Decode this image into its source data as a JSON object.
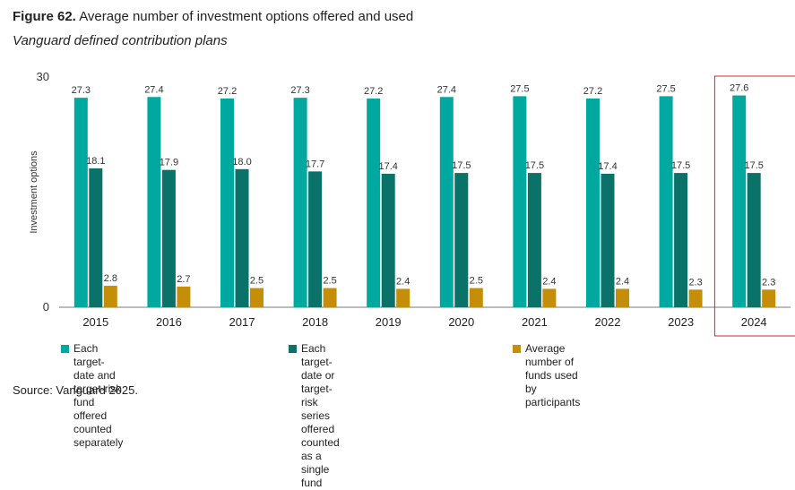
{
  "title": {
    "figure_label": "Figure 62.",
    "text": "Average number of investment options offered and used"
  },
  "subtitle": "Vanguard defined contribution plans",
  "source": "Source: Vanguard 2025.",
  "highlight_color": "#d9262c",
  "chart_data": {
    "type": "bar",
    "title": "Average number of investment options offered and used",
    "subtitle": "Vanguard defined contribution plans",
    "xlabel": "",
    "ylabel": "Investment options",
    "ylim": [
      0,
      30
    ],
    "yticks": [
      0,
      30
    ],
    "grid": false,
    "legend_position": "bottom",
    "categories": [
      "2015",
      "2016",
      "2017",
      "2018",
      "2019",
      "2020",
      "2021",
      "2022",
      "2023",
      "2024"
    ],
    "highlighted_category": "2024",
    "series": [
      {
        "name": "Each target-date and target-risk fund offered counted separately",
        "color": "#00a9a0",
        "values": [
          27.3,
          27.4,
          27.2,
          27.3,
          27.2,
          27.4,
          27.5,
          27.2,
          27.5,
          27.6
        ],
        "labels": [
          "27.3",
          "27.4",
          "27.2",
          "27.3",
          "27.2",
          "27.4",
          "27.5",
          "27.2",
          "27.5",
          "27.6"
        ]
      },
      {
        "name": "Each target-date or target-risk series offered counted as a single fund",
        "color": "#0b726a",
        "values": [
          18.1,
          17.9,
          18.0,
          17.7,
          17.4,
          17.5,
          17.5,
          17.4,
          17.5,
          17.5
        ],
        "labels": [
          "18.1",
          "17.9",
          "18.0",
          "17.7",
          "17.4",
          "17.5",
          "17.5",
          "17.4",
          "17.5",
          "17.5"
        ]
      },
      {
        "name": "Average number of funds used by participants",
        "color": "#c58e09",
        "values": [
          2.8,
          2.7,
          2.5,
          2.5,
          2.4,
          2.5,
          2.4,
          2.4,
          2.3,
          2.3
        ],
        "labels": [
          "2.8",
          "2.7",
          "2.5",
          "2.5",
          "2.4",
          "2.5",
          "2.4",
          "2.4",
          "2.3",
          "2.3"
        ]
      }
    ]
  },
  "legend": [
    {
      "label": "Each target-date and target-risk\nfund offered counted separately",
      "color": "#00a9a0"
    },
    {
      "label": "Each target-date or target-risk series\noffered counted as a single fund",
      "color": "#0b726a"
    },
    {
      "label": "Average number of funds used\nby participants",
      "color": "#c58e09"
    }
  ]
}
